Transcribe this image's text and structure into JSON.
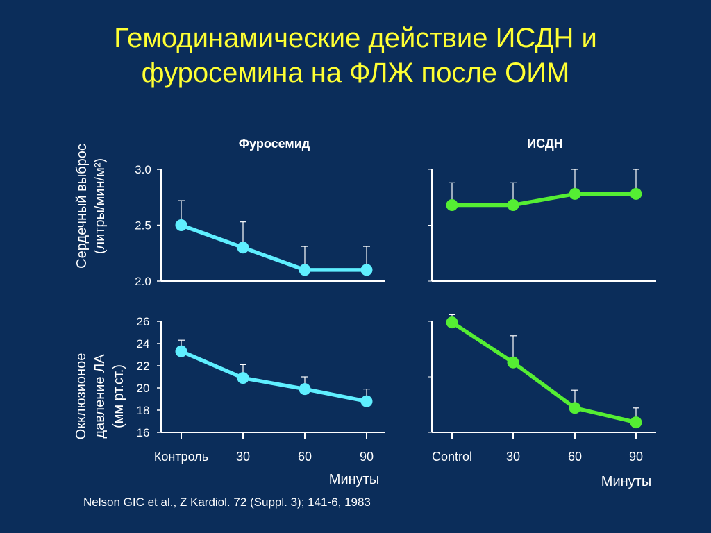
{
  "slide": {
    "title_line1": "Гемодинамические действие ИСДН и",
    "title_line2": "фуросемина на ФЛЖ после ОИМ",
    "source": "Nelson GIC et al., Z Kardiol. 72 (Suppl. 3); 141-6, 1983"
  },
  "colors": {
    "background": "#0b2d5a",
    "title": "#ffff33",
    "text": "#ffffff",
    "furosemide_series": "#5fefff",
    "isdn_series": "#55ee33",
    "axis": "#ffffff"
  },
  "chart_data": [
    {
      "id": "co-furo",
      "type": "line",
      "title": "Фуросемид",
      "ylabel": "Сердечный выброс (литры/мин/м²)",
      "ylabel_line1": "Сердечный выброс",
      "ylabel_line2": "(литры/мин/м²)",
      "ylim": [
        2.0,
        3.0
      ],
      "yticks": [
        2.0,
        2.5,
        3.0
      ],
      "ytick_labels": [
        "2.0",
        "2.5",
        "3.0"
      ],
      "x": [
        "Контроль",
        "30",
        "60",
        "90"
      ],
      "values": [
        2.5,
        2.3,
        2.1,
        2.1
      ],
      "error_upper": [
        2.72,
        2.53,
        2.31,
        2.31
      ],
      "color": "#5fefff"
    },
    {
      "id": "co-isdn",
      "type": "line",
      "title": "ИСДН",
      "ylim": [
        2.0,
        3.0
      ],
      "x": [
        "Control",
        "30",
        "60",
        "90"
      ],
      "values": [
        2.68,
        2.68,
        2.78,
        2.78
      ],
      "error_upper": [
        2.88,
        2.88,
        3.0,
        3.0
      ],
      "color": "#55ee33"
    },
    {
      "id": "pcw-furo",
      "type": "line",
      "ylabel": "Окклюзионое давление ЛА (мм рт.ст.)",
      "ylabel_line1": "Окклюзионое",
      "ylabel_line2": "давление ЛА",
      "ylabel_line3": "(мм рт.ст.)",
      "ylim": [
        16,
        26
      ],
      "yticks": [
        16,
        18,
        20,
        22,
        24,
        26
      ],
      "ytick_labels": [
        "16",
        "18",
        "20",
        "22",
        "24",
        "26"
      ],
      "x": [
        "Контроль",
        "30",
        "60",
        "90"
      ],
      "xtick_labels": [
        "Контроль",
        "30",
        "60",
        "90"
      ],
      "xlabel": "Минуты",
      "values": [
        23.3,
        20.9,
        19.9,
        18.8
      ],
      "error_upper": [
        24.3,
        22.1,
        21.0,
        19.9
      ],
      "color": "#5fefff"
    },
    {
      "id": "pcw-isdn",
      "type": "line",
      "ylim": [
        16,
        26
      ],
      "x": [
        "Control",
        "30",
        "60",
        "90"
      ],
      "xtick_labels": [
        "Control",
        "30",
        "60",
        "90"
      ],
      "xlabel": "Минуты",
      "values": [
        25.9,
        22.3,
        18.2,
        16.9
      ],
      "error_upper": [
        26.6,
        24.7,
        19.8,
        18.2
      ],
      "color": "#55ee33"
    }
  ]
}
